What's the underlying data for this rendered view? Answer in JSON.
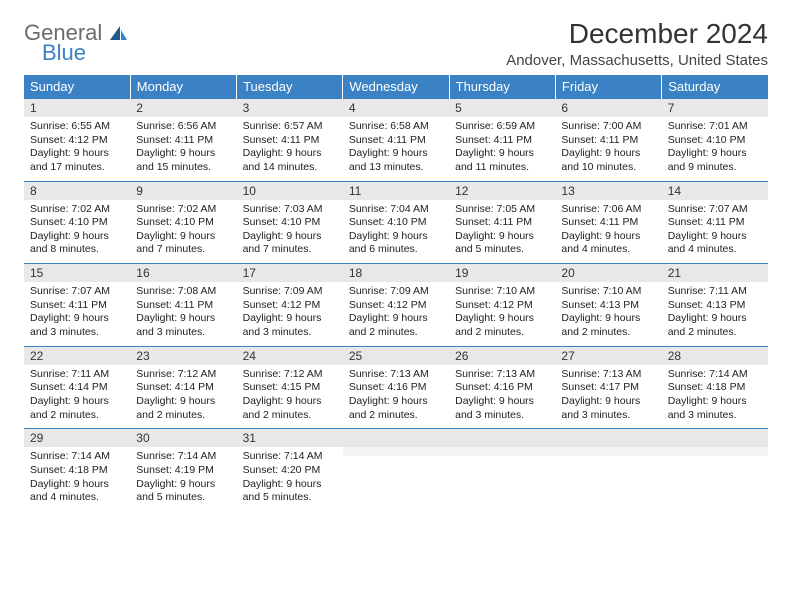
{
  "brand": {
    "word1": "General",
    "word2": "Blue",
    "text_color": "#6b6b6b",
    "accent_color": "#3b82c4"
  },
  "title": "December 2024",
  "location": "Andover, Massachusetts, United States",
  "header_bg": "#3b82c4",
  "header_text": "#ffffff",
  "daynum_bg": "#e8e8e8",
  "border_color": "#3b82c4",
  "day_names": [
    "Sunday",
    "Monday",
    "Tuesday",
    "Wednesday",
    "Thursday",
    "Friday",
    "Saturday"
  ],
  "weeks": [
    [
      {
        "n": "1",
        "sr": "Sunrise: 6:55 AM",
        "ss": "Sunset: 4:12 PM",
        "dl": "Daylight: 9 hours and 17 minutes."
      },
      {
        "n": "2",
        "sr": "Sunrise: 6:56 AM",
        "ss": "Sunset: 4:11 PM",
        "dl": "Daylight: 9 hours and 15 minutes."
      },
      {
        "n": "3",
        "sr": "Sunrise: 6:57 AM",
        "ss": "Sunset: 4:11 PM",
        "dl": "Daylight: 9 hours and 14 minutes."
      },
      {
        "n": "4",
        "sr": "Sunrise: 6:58 AM",
        "ss": "Sunset: 4:11 PM",
        "dl": "Daylight: 9 hours and 13 minutes."
      },
      {
        "n": "5",
        "sr": "Sunrise: 6:59 AM",
        "ss": "Sunset: 4:11 PM",
        "dl": "Daylight: 9 hours and 11 minutes."
      },
      {
        "n": "6",
        "sr": "Sunrise: 7:00 AM",
        "ss": "Sunset: 4:11 PM",
        "dl": "Daylight: 9 hours and 10 minutes."
      },
      {
        "n": "7",
        "sr": "Sunrise: 7:01 AM",
        "ss": "Sunset: 4:10 PM",
        "dl": "Daylight: 9 hours and 9 minutes."
      }
    ],
    [
      {
        "n": "8",
        "sr": "Sunrise: 7:02 AM",
        "ss": "Sunset: 4:10 PM",
        "dl": "Daylight: 9 hours and 8 minutes."
      },
      {
        "n": "9",
        "sr": "Sunrise: 7:02 AM",
        "ss": "Sunset: 4:10 PM",
        "dl": "Daylight: 9 hours and 7 minutes."
      },
      {
        "n": "10",
        "sr": "Sunrise: 7:03 AM",
        "ss": "Sunset: 4:10 PM",
        "dl": "Daylight: 9 hours and 7 minutes."
      },
      {
        "n": "11",
        "sr": "Sunrise: 7:04 AM",
        "ss": "Sunset: 4:10 PM",
        "dl": "Daylight: 9 hours and 6 minutes."
      },
      {
        "n": "12",
        "sr": "Sunrise: 7:05 AM",
        "ss": "Sunset: 4:11 PM",
        "dl": "Daylight: 9 hours and 5 minutes."
      },
      {
        "n": "13",
        "sr": "Sunrise: 7:06 AM",
        "ss": "Sunset: 4:11 PM",
        "dl": "Daylight: 9 hours and 4 minutes."
      },
      {
        "n": "14",
        "sr": "Sunrise: 7:07 AM",
        "ss": "Sunset: 4:11 PM",
        "dl": "Daylight: 9 hours and 4 minutes."
      }
    ],
    [
      {
        "n": "15",
        "sr": "Sunrise: 7:07 AM",
        "ss": "Sunset: 4:11 PM",
        "dl": "Daylight: 9 hours and 3 minutes."
      },
      {
        "n": "16",
        "sr": "Sunrise: 7:08 AM",
        "ss": "Sunset: 4:11 PM",
        "dl": "Daylight: 9 hours and 3 minutes."
      },
      {
        "n": "17",
        "sr": "Sunrise: 7:09 AM",
        "ss": "Sunset: 4:12 PM",
        "dl": "Daylight: 9 hours and 3 minutes."
      },
      {
        "n": "18",
        "sr": "Sunrise: 7:09 AM",
        "ss": "Sunset: 4:12 PM",
        "dl": "Daylight: 9 hours and 2 minutes."
      },
      {
        "n": "19",
        "sr": "Sunrise: 7:10 AM",
        "ss": "Sunset: 4:12 PM",
        "dl": "Daylight: 9 hours and 2 minutes."
      },
      {
        "n": "20",
        "sr": "Sunrise: 7:10 AM",
        "ss": "Sunset: 4:13 PM",
        "dl": "Daylight: 9 hours and 2 minutes."
      },
      {
        "n": "21",
        "sr": "Sunrise: 7:11 AM",
        "ss": "Sunset: 4:13 PM",
        "dl": "Daylight: 9 hours and 2 minutes."
      }
    ],
    [
      {
        "n": "22",
        "sr": "Sunrise: 7:11 AM",
        "ss": "Sunset: 4:14 PM",
        "dl": "Daylight: 9 hours and 2 minutes."
      },
      {
        "n": "23",
        "sr": "Sunrise: 7:12 AM",
        "ss": "Sunset: 4:14 PM",
        "dl": "Daylight: 9 hours and 2 minutes."
      },
      {
        "n": "24",
        "sr": "Sunrise: 7:12 AM",
        "ss": "Sunset: 4:15 PM",
        "dl": "Daylight: 9 hours and 2 minutes."
      },
      {
        "n": "25",
        "sr": "Sunrise: 7:13 AM",
        "ss": "Sunset: 4:16 PM",
        "dl": "Daylight: 9 hours and 2 minutes."
      },
      {
        "n": "26",
        "sr": "Sunrise: 7:13 AM",
        "ss": "Sunset: 4:16 PM",
        "dl": "Daylight: 9 hours and 3 minutes."
      },
      {
        "n": "27",
        "sr": "Sunrise: 7:13 AM",
        "ss": "Sunset: 4:17 PM",
        "dl": "Daylight: 9 hours and 3 minutes."
      },
      {
        "n": "28",
        "sr": "Sunrise: 7:14 AM",
        "ss": "Sunset: 4:18 PM",
        "dl": "Daylight: 9 hours and 3 minutes."
      }
    ],
    [
      {
        "n": "29",
        "sr": "Sunrise: 7:14 AM",
        "ss": "Sunset: 4:18 PM",
        "dl": "Daylight: 9 hours and 4 minutes."
      },
      {
        "n": "30",
        "sr": "Sunrise: 7:14 AM",
        "ss": "Sunset: 4:19 PM",
        "dl": "Daylight: 9 hours and 5 minutes."
      },
      {
        "n": "31",
        "sr": "Sunrise: 7:14 AM",
        "ss": "Sunset: 4:20 PM",
        "dl": "Daylight: 9 hours and 5 minutes."
      },
      null,
      null,
      null,
      null
    ]
  ]
}
